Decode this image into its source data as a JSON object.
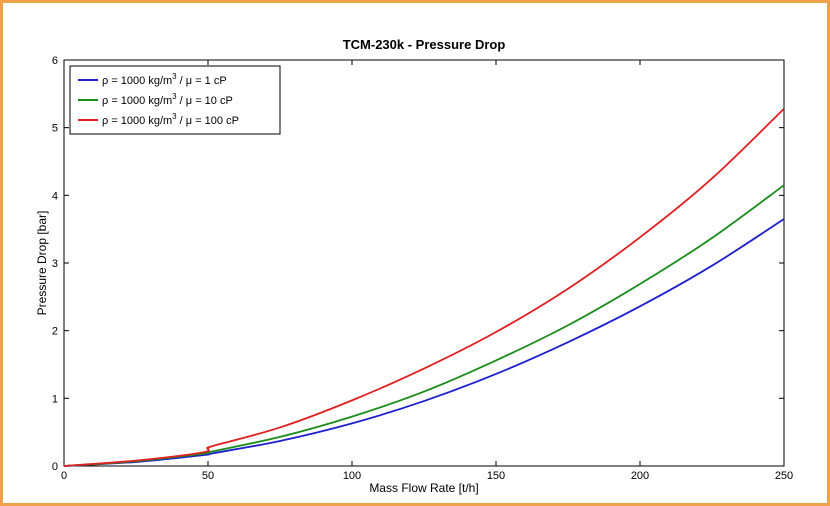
{
  "chart_data": {
    "type": "line",
    "title": "TCM-230k - Pressure Drop",
    "xlabel": "Mass Flow Rate [t/h]",
    "ylabel": "Pressure Drop [bar]",
    "xlim": [
      0,
      250
    ],
    "ylim": [
      0,
      6
    ],
    "xticks": [
      0,
      50,
      100,
      150,
      200,
      250
    ],
    "yticks": [
      0,
      1,
      2,
      3,
      4,
      5,
      6
    ],
    "grid": false,
    "legend_position": "top-left",
    "x": [
      0,
      25,
      48,
      50,
      52,
      75,
      100,
      125,
      150,
      175,
      200,
      225,
      250
    ],
    "series": [
      {
        "name": "1 cP",
        "label_prefix": "ρ = 1000 kg/m",
        "label_sup": "3",
        "label_suffix": " /  μ = 1 cP",
        "color": "#1f1fd0",
        "values": [
          0,
          0.06,
          0.16,
          0.17,
          0.19,
          0.37,
          0.63,
          0.96,
          1.36,
          1.83,
          2.36,
          2.96,
          3.65
        ]
      },
      {
        "name": "10 cP",
        "label_prefix": "ρ = 1000 kg/m",
        "label_sup": "3",
        "label_suffix": " /  μ = 10 cP",
        "color": "#198c19",
        "values": [
          0,
          0.07,
          0.18,
          0.2,
          0.22,
          0.43,
          0.73,
          1.1,
          1.56,
          2.08,
          2.69,
          3.37,
          4.15
        ]
      },
      {
        "name": "100 cP",
        "label_prefix": "ρ = 1000 kg/m",
        "label_sup": "3",
        "label_suffix": " /  μ = 100 cP",
        "color": "#e02020",
        "values": [
          0,
          0.08,
          0.2,
          0.26,
          0.3,
          0.57,
          0.97,
          1.44,
          1.98,
          2.62,
          3.38,
          4.25,
          5.28
        ]
      }
    ]
  }
}
